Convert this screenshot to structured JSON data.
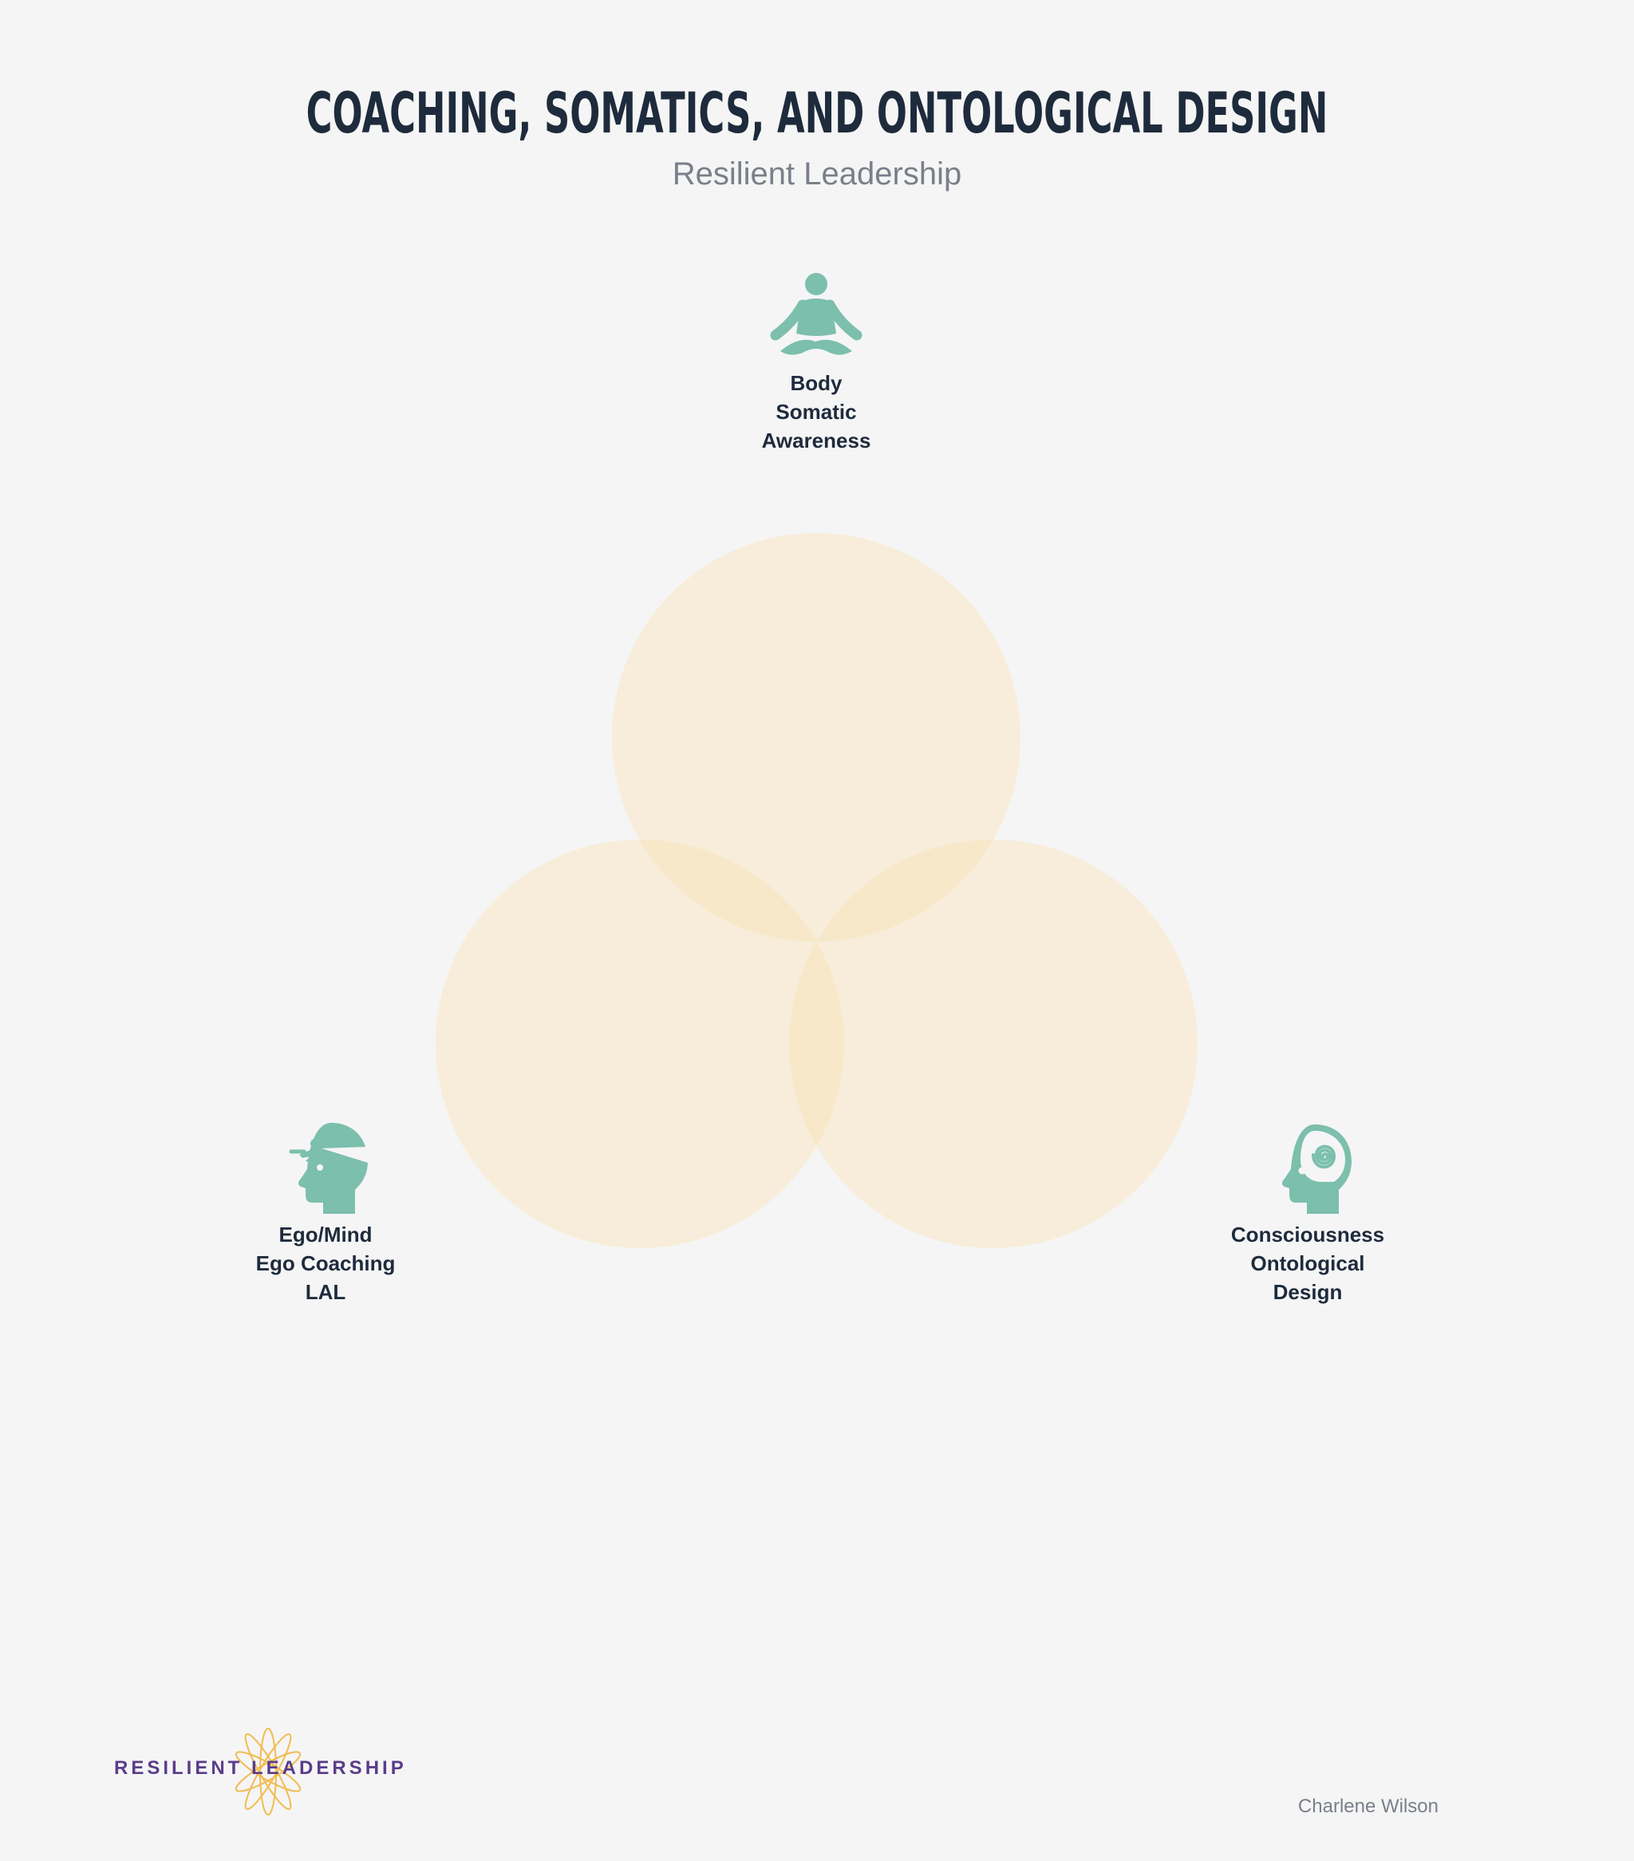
{
  "header": {
    "title": "COACHING, SOMATICS, AND ONTOLOGICAL DESIGN",
    "subtitle": "Resilient Leadership"
  },
  "colors": {
    "background": "#f5f5f5",
    "title": "#1e2b3c",
    "subtitle": "#7a808a",
    "icon": "#7cbfac",
    "circle_fill": "#fae2b4",
    "logo_text": "#5a3d8a",
    "logo_flourish": "#f2b134"
  },
  "nodes": [
    {
      "id": "body",
      "icon": "meditation-icon",
      "lines": [
        "Body",
        "Somatic",
        "Awareness"
      ]
    },
    {
      "id": "ego",
      "icon": "head-running-person-icon",
      "lines": [
        "Ego/Mind",
        "Ego Coaching",
        "LAL"
      ]
    },
    {
      "id": "consciousness",
      "icon": "head-spiral-icon",
      "lines": [
        "Consciousness",
        "Ontological",
        "Design"
      ]
    }
  ],
  "footer": {
    "logo_text": "RESILIENT LEADERSHIP",
    "author": "Charlene Wilson"
  }
}
